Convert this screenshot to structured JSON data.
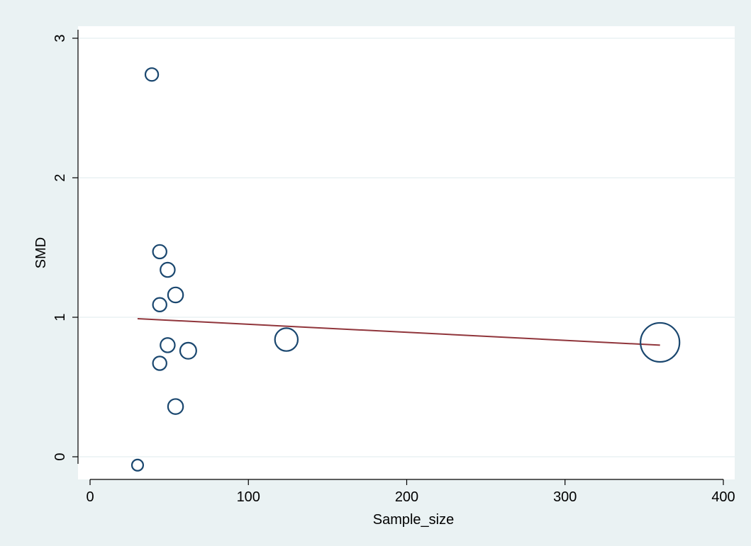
{
  "chart_data": {
    "type": "scatter",
    "title": "",
    "xlabel": "Sample_size",
    "ylabel": "SMD",
    "xlim": [
      0,
      400
    ],
    "ylim": [
      0,
      3
    ],
    "x_ticks": [
      0,
      100,
      200,
      300,
      400
    ],
    "y_ticks": [
      0,
      1,
      2,
      3
    ],
    "grid": "horizontal",
    "legend": "none",
    "points": [
      {
        "x": 30,
        "y": -0.06,
        "size": 30
      },
      {
        "x": 39,
        "y": 2.74,
        "size": 39
      },
      {
        "x": 44,
        "y": 1.47,
        "size": 44
      },
      {
        "x": 44,
        "y": 1.09,
        "size": 44
      },
      {
        "x": 44,
        "y": 0.67,
        "size": 44
      },
      {
        "x": 49,
        "y": 1.34,
        "size": 49
      },
      {
        "x": 49,
        "y": 0.8,
        "size": 49
      },
      {
        "x": 54,
        "y": 1.16,
        "size": 54
      },
      {
        "x": 54,
        "y": 0.36,
        "size": 54
      },
      {
        "x": 62,
        "y": 0.76,
        "size": 62
      },
      {
        "x": 124,
        "y": 0.84,
        "size": 124
      },
      {
        "x": 360,
        "y": 0.82,
        "size": 360
      }
    ],
    "fit_line": {
      "x": [
        30,
        360
      ],
      "y": [
        0.99,
        0.8
      ]
    },
    "colors": {
      "outer_background": "#eaf2f3",
      "plot_background": "#ffffff",
      "gridline": "#eaf2f3",
      "marker": "#1a476f",
      "fit_line": "#90353b",
      "axis": "#000000"
    }
  }
}
